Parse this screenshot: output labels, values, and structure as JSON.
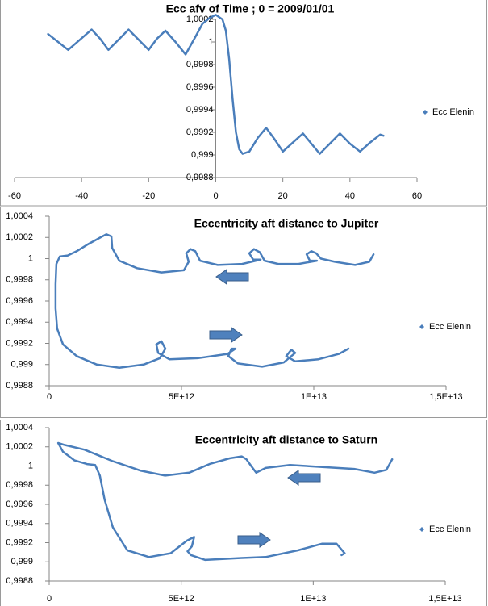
{
  "chart_data": [
    {
      "type": "scatter",
      "title": "Ecc afv of Time ; 0 = 2009/01/01",
      "legend": "right",
      "xlim": [
        -60,
        60
      ],
      "xticks": [
        -60,
        -40,
        -20,
        0,
        20,
        40,
        60
      ],
      "ylim": [
        0.9988,
        1.0002
      ],
      "yticks": [
        {
          "value": 0.9988,
          "label": "0,9988"
        },
        {
          "value": 0.999,
          "label": "0,999"
        },
        {
          "value": 0.9992,
          "label": "0,9992"
        },
        {
          "value": 0.9994,
          "label": "0,9994"
        },
        {
          "value": 0.9996,
          "label": "0,9996"
        },
        {
          "value": 0.9998,
          "label": "0,9998"
        },
        1,
        {
          "value": 1.0002,
          "label": "1,0002"
        }
      ],
      "x": [
        -50,
        -47,
        -44,
        -40.5,
        -37,
        -34.5,
        -32,
        -29,
        -26,
        -23,
        -20,
        -17.5,
        -15,
        -12,
        -9,
        -6,
        -4,
        -2,
        0,
        2,
        3,
        4,
        5,
        6,
        7,
        8,
        10,
        12.5,
        15,
        17.5,
        20,
        23,
        26,
        28.5,
        31,
        34,
        37,
        40,
        43,
        46,
        49,
        50
      ],
      "series": [
        {
          "name": "Ecc Elenin",
          "color": "#4a7ebb",
          "values": [
            1.00007,
            1.0,
            0.99993,
            1.00002,
            1.00011,
            1.00003,
            0.99993,
            1.00002,
            1.00011,
            1.00002,
            0.99993,
            1.00003,
            1.0001,
            1.0,
            0.99989,
            1.00005,
            1.00016,
            1.00021,
            1.00024,
            1.0002,
            1.0001,
            0.99985,
            0.9995,
            0.9992,
            0.99905,
            0.99901,
            0.99903,
            0.99915,
            0.99924,
            0.99914,
            0.99903,
            0.99911,
            0.99919,
            0.9991,
            0.99901,
            0.9991,
            0.99919,
            0.9991,
            0.99903,
            0.99911,
            0.99918,
            0.99917
          ]
        }
      ]
    },
    {
      "type": "scatter",
      "title": "Eccentricity aft distance to Jupiter",
      "legend": "right",
      "xlim": [
        0,
        15000000000000.0
      ],
      "xticks": [
        0,
        {
          "value": 5000000000000.0,
          "label": "5E+12"
        },
        {
          "value": 10000000000000.0,
          "label": "1E+13"
        },
        {
          "value": 15000000000000.0,
          "label": "1,5E+13"
        }
      ],
      "ylim": [
        0.9988,
        1.0004
      ],
      "yticks": [
        {
          "value": 0.9988,
          "label": "0,9988"
        },
        {
          "value": 0.999,
          "label": "0,999"
        },
        {
          "value": 0.9992,
          "label": "0,9992"
        },
        {
          "value": 0.9994,
          "label": "0,9994"
        },
        {
          "value": 0.9996,
          "label": "0,9996"
        },
        {
          "value": 0.9998,
          "label": "0,9998"
        },
        1,
        {
          "value": 1.0002,
          "label": "1,0002"
        },
        {
          "value": 1.0004,
          "label": "1,0004"
        }
      ],
      "x": [
        12260000000000.0,
        12100000000000.0,
        11560000000000.0,
        10790000000000.0,
        10270000000000.0,
        10090000000000.0,
        9910000000000.0,
        9730000000000.0,
        9850000000000.0,
        10120000000000.0,
        9420000000000.0,
        8660000000000.0,
        8140000000000.0,
        7960000000000.0,
        7740000000000.0,
        7560000000000.0,
        7710000000000.0,
        7990000000000.0,
        7290000000000.0,
        6370000000000.0,
        5700000000000.0,
        5520000000000.0,
        5340000000000.0,
        5180000000000.0,
        5270000000000.0,
        5090000000000.0,
        4240000000000.0,
        3320000000000.0,
        2650000000000.0,
        2380000000000.0,
        2350000000000.0,
        2160000000000.0,
        1860000000000.0,
        1430000000000.0,
        1040000000000.0,
        700000000000.0,
        400000000000.0,
        270000000000.0,
        240000000000.0,
        240000000000.0,
        300000000000.0,
        520000000000.0,
        1040000000000.0,
        1800000000000.0,
        2650000000000.0,
        3570000000000.0,
        4180000000000.0,
        4390000000000.0,
        4240000000000.0,
        4050000000000.0,
        4120000000000.0,
        4540000000000.0,
        5610000000000.0,
        6740000000000.0,
        7040000000000.0,
        6890000000000.0,
        6770000000000.0,
        7130000000000.0,
        8050000000000.0,
        8870000000000.0,
        9300000000000.0,
        9150000000000.0,
        8960000000000.0,
        9300000000000.0,
        10180000000000.0,
        10950000000000.0,
        11310000000000.0
      ],
      "series": [
        {
          "name": "Ecc Elenin",
          "color": "#4a7ebb",
          "values": [
            1.00004,
            0.99997,
            0.99994,
            0.99997,
            1.0,
            1.00005,
            1.00007,
            1.00004,
            0.99998,
            0.99998,
            0.99995,
            0.99995,
            0.99998,
            1.00006,
            1.00009,
            1.00005,
            0.99999,
            0.99999,
            0.99995,
            0.99994,
            0.99998,
            1.00007,
            1.00009,
            1.00005,
            0.99997,
            0.99989,
            0.99987,
            0.99991,
            0.99998,
            1.0001,
            1.00021,
            1.00023,
            1.00019,
            1.00013,
            1.00007,
            1.00003,
            1.00002,
            0.99995,
            0.99976,
            0.99953,
            0.99934,
            0.99919,
            0.99908,
            0.999,
            0.99897,
            0.999,
            0.99906,
            0.99915,
            0.99922,
            0.99919,
            0.99911,
            0.99905,
            0.99906,
            0.9991,
            0.99915,
            0.99915,
            0.99908,
            0.99901,
            0.99898,
            0.99902,
            0.99911,
            0.99914,
            0.99908,
            0.99903,
            0.99905,
            0.9991,
            0.99915
          ]
        }
      ]
    },
    {
      "type": "scatter",
      "title": "Eccentricity aft distance to Saturn",
      "legend": "right",
      "xlim": [
        0,
        15000000000000.0
      ],
      "xticks": [
        0,
        {
          "value": 5000000000000.0,
          "label": "5E+12"
        },
        {
          "value": 10000000000000.0,
          "label": "1E+13"
        },
        {
          "value": 15000000000000.0,
          "label": "1,5E+13"
        }
      ],
      "ylim": [
        0.9988,
        1.0004
      ],
      "yticks": [
        {
          "value": 0.9988,
          "label": "0,9988"
        },
        {
          "value": 0.999,
          "label": "0,999"
        },
        {
          "value": 0.9992,
          "label": "0,9992"
        },
        {
          "value": 0.9994,
          "label": "0,9994"
        },
        {
          "value": 0.9996,
          "label": "0,9996"
        },
        {
          "value": 0.9998,
          "label": "0,9998"
        },
        1,
        {
          "value": 1.0002,
          "label": "1,0002"
        },
        {
          "value": 1.0004,
          "label": "1,0004"
        }
      ],
      "x": [
        12990000000000.0,
        12770000000000.0,
        12320000000000.0,
        11550000000000.0,
        10340000000000.0,
        9120000000000.0,
        8200000000000.0,
        7840000000000.0,
        7650000000000.0,
        7470000000000.0,
        7290000000000.0,
        6830000000000.0,
        6070000000000.0,
        5300000000000.0,
        4390000000000.0,
        3480000000000.0,
        2410000000000.0,
        1340000000000.0,
        580000000000.0,
        340000000000.0,
        520000000000.0,
        950000000000.0,
        1430000000000.0,
        1740000000000.0,
        1920000000000.0,
        2100000000000.0,
        2410000000000.0,
        2960000000000.0,
        3780000000000.0,
        4600000000000.0,
        5210000000000.0,
        5490000000000.0,
        5400000000000.0,
        5240000000000.0,
        5370000000000.0,
        5910000000000.0,
        7290000000000.0,
        8200000000000.0,
        9420000000000.0,
        10340000000000.0,
        10880000000000.0,
        11190000000000.0,
        11070000000000.0
      ],
      "series": [
        {
          "name": "Ecc Elenin",
          "color": "#4a7ebb",
          "values": [
            1.00007,
            0.99996,
            0.99993,
            0.99997,
            0.99999,
            1.00001,
            0.99998,
            0.99993,
            1.0,
            1.00007,
            1.0001,
            1.00008,
            1.00002,
            0.99993,
            0.9999,
            0.99995,
            1.00005,
            1.00017,
            1.00022,
            1.00024,
            1.00015,
            1.00006,
            1.00002,
            1.00001,
            0.9999,
            0.99965,
            0.99936,
            0.99912,
            0.99905,
            0.99909,
            0.99922,
            0.99926,
            0.99916,
            0.99911,
            0.99907,
            0.99902,
            0.99904,
            0.99905,
            0.99912,
            0.99919,
            0.99919,
            0.99909,
            0.99907
          ]
        }
      ]
    }
  ]
}
